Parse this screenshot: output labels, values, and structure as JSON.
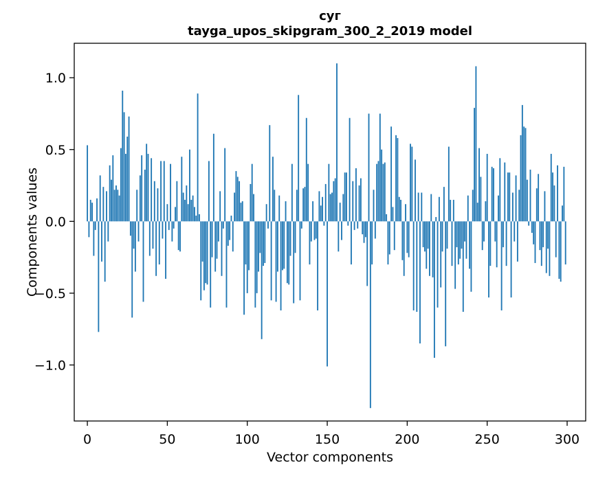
{
  "chart_data": {
    "type": "bar",
    "title": "суг",
    "subtitle": "tayga_upos_skipgram_300_2_2019 model",
    "xlabel": "Vector components",
    "ylabel": "Components values",
    "bar_color": "#1f77b4",
    "background_color": "#ffffff",
    "grid": false,
    "legend": "none",
    "n_components": 300,
    "x_tick_values": [
      0,
      50,
      100,
      150,
      200,
      250,
      300
    ],
    "x_tick_labels": [
      "0",
      "50",
      "100",
      "150",
      "200",
      "250",
      "300"
    ],
    "y_tick_values": [
      1.0,
      0.5,
      0.0,
      -0.5,
      -1.0
    ],
    "y_tick_labels": [
      "1.0",
      "0.5",
      "0.0",
      "−0.5",
      "−1.0"
    ],
    "xlim": [
      -8.2,
      311.6
    ],
    "ylim": [
      -1.39,
      1.24
    ],
    "values": [
      0.53,
      -0.11,
      0.15,
      0.13,
      -0.24,
      -0.06,
      0.16,
      -0.77,
      0.32,
      -0.28,
      0.24,
      -0.42,
      0.21,
      -0.14,
      0.39,
      0.29,
      0.46,
      0.22,
      0.25,
      0.22,
      0.18,
      0.51,
      0.91,
      0.76,
      0.47,
      0.59,
      0.73,
      -0.1,
      -0.67,
      -0.19,
      -0.35,
      0.22,
      -0.14,
      0.32,
      0.46,
      -0.56,
      0.36,
      0.54,
      0.47,
      -0.24,
      0.44,
      -0.19,
      0.28,
      -0.38,
      0.23,
      -0.3,
      0.42,
      -0.12,
      0.42,
      -0.4,
      0.12,
      -0.06,
      0.4,
      -0.14,
      -0.05,
      0.1,
      0.28,
      -0.2,
      -0.21,
      0.45,
      0.2,
      0.15,
      0.25,
      0.12,
      0.5,
      0.15,
      0.18,
      0.1,
      0.04,
      0.89,
      0.05,
      -0.55,
      -0.28,
      -0.48,
      -0.43,
      -0.44,
      0.42,
      -0.6,
      -0.25,
      0.61,
      -0.35,
      -0.26,
      -0.14,
      0.21,
      -0.38,
      -0.05,
      0.51,
      -0.6,
      -0.17,
      -0.13,
      0.04,
      -0.21,
      0.2,
      0.35,
      0.31,
      0.28,
      0.13,
      0.14,
      -0.65,
      -0.3,
      -0.5,
      -0.34,
      0.26,
      0.4,
      0.19,
      -0.6,
      -0.5,
      -0.35,
      -0.22,
      -0.82,
      -0.31,
      -0.29,
      0.12,
      -0.05,
      0.67,
      -0.55,
      0.45,
      0.22,
      -0.56,
      -0.35,
      0.18,
      -0.62,
      -0.34,
      -0.33,
      0.14,
      -0.43,
      -0.44,
      -0.24,
      0.4,
      -0.57,
      -0.22,
      0.22,
      0.88,
      -0.55,
      -0.05,
      0.23,
      0.24,
      0.72,
      0.4,
      -0.3,
      -0.14,
      0.14,
      -0.13,
      -0.12,
      -0.62,
      0.21,
      0.11,
      0.17,
      -0.03,
      0.26,
      -1.01,
      0.4,
      0.19,
      0.2,
      0.28,
      0.3,
      1.1,
      -0.21,
      0.13,
      -0.13,
      0.19,
      0.34,
      0.34,
      -0.03,
      0.72,
      -0.3,
      0.28,
      -0.06,
      0.37,
      -0.05,
      0.25,
      0.3,
      -0.09,
      -0.15,
      -0.11,
      -0.45,
      0.75,
      -1.3,
      -0.3,
      0.22,
      -0.12,
      0.4,
      0.42,
      0.75,
      0.5,
      0.4,
      0.41,
      0.05,
      -0.3,
      -0.23,
      0.66,
      0.1,
      -0.2,
      0.6,
      0.58,
      0.17,
      0.15,
      -0.27,
      -0.38,
      0.12,
      -0.22,
      -0.25,
      0.54,
      0.52,
      -0.62,
      0.43,
      -0.63,
      0.2,
      -0.85,
      0.2,
      -0.18,
      -0.21,
      -0.33,
      -0.19,
      -0.38,
      0.19,
      -0.39,
      -0.95,
      0.03,
      -0.6,
      0.17,
      -0.46,
      -0.21,
      0.24,
      -0.87,
      -0.19,
      0.52,
      0.15,
      -0.31,
      0.15,
      -0.47,
      -0.18,
      -0.3,
      -0.26,
      -0.19,
      -0.63,
      -0.14,
      -0.26,
      0.18,
      -0.33,
      -0.49,
      0.22,
      0.79,
      1.08,
      0.13,
      0.51,
      0.31,
      -0.2,
      -0.14,
      0.14,
      0.47,
      -0.53,
      -0.31,
      0.38,
      0.37,
      -0.14,
      -0.32,
      0.18,
      0.44,
      -0.62,
      -0.18,
      0.41,
      -0.31,
      0.34,
      0.34,
      -0.53,
      0.2,
      -0.14,
      0.32,
      -0.28,
      0.22,
      0.6,
      0.81,
      0.66,
      0.65,
      0.29,
      -0.03,
      0.36,
      -0.08,
      -0.16,
      -0.29,
      0.23,
      0.33,
      -0.2,
      -0.31,
      -0.18,
      0.21,
      -0.36,
      -0.19,
      -0.38,
      0.47,
      0.34,
      0.25,
      -0.25,
      0.39,
      -0.4,
      -0.42,
      0.11,
      0.38,
      -0.3
    ]
  }
}
